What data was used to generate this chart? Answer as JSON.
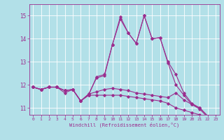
{
  "xlabel": "Windchill (Refroidissement éolien,°C)",
  "ylabel": "",
  "xlim": [
    -0.5,
    23.5
  ],
  "ylim": [
    10.7,
    15.5
  ],
  "yticks": [
    11,
    12,
    13,
    14,
    15
  ],
  "xticks": [
    0,
    1,
    2,
    3,
    4,
    5,
    6,
    7,
    8,
    9,
    10,
    11,
    12,
    13,
    14,
    15,
    16,
    17,
    18,
    19,
    20,
    21,
    22,
    23
  ],
  "bg_color": "#b2e0e8",
  "grid_color": "#ffffff",
  "line_color": "#9b2d8e",
  "series": [
    [
      11.9,
      11.8,
      11.9,
      11.9,
      11.75,
      11.8,
      11.3,
      11.55,
      11.55,
      11.55,
      11.55,
      11.55,
      11.5,
      11.45,
      11.4,
      11.35,
      11.3,
      11.2,
      11.0,
      10.9,
      10.8,
      10.7,
      10.6,
      10.65
    ],
    [
      11.9,
      11.8,
      11.9,
      11.9,
      11.75,
      11.8,
      11.3,
      11.6,
      11.7,
      11.8,
      11.85,
      11.8,
      11.75,
      11.65,
      11.6,
      11.55,
      11.5,
      11.45,
      11.65,
      11.35,
      11.15,
      11.0,
      10.65,
      10.65
    ],
    [
      11.9,
      11.8,
      11.9,
      11.9,
      11.75,
      11.8,
      11.3,
      11.6,
      12.3,
      12.4,
      13.75,
      14.95,
      14.25,
      13.8,
      15.0,
      14.0,
      14.05,
      13.0,
      12.45,
      11.65,
      11.2,
      11.0,
      10.65,
      10.65
    ],
    [
      11.9,
      11.8,
      11.9,
      11.9,
      11.65,
      11.8,
      11.3,
      11.55,
      12.35,
      12.45,
      13.75,
      14.85,
      14.25,
      13.8,
      15.0,
      14.0,
      14.05,
      12.95,
      12.0,
      11.55,
      11.15,
      10.95,
      10.6,
      10.6
    ]
  ]
}
